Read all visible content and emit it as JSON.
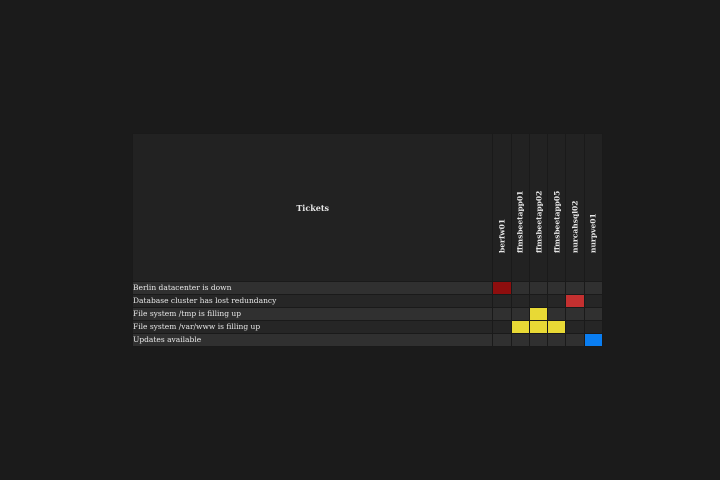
{
  "table": {
    "header_title": "Tickets",
    "hosts": [
      "berfw01",
      "ffmsbeetapp01",
      "ffmsbeetapp02",
      "ffmsbeetapp05",
      "nurcahsql02",
      "nurpve01"
    ],
    "tickets": [
      {
        "title": "Berlin datacenter is down",
        "cells": [
          "critical",
          "",
          "",
          "",
          "",
          ""
        ]
      },
      {
        "title": "Database cluster has lost redundancy",
        "cells": [
          "",
          "",
          "",
          "",
          "high",
          ""
        ]
      },
      {
        "title": "File system /tmp is filling up",
        "cells": [
          "",
          "",
          "warning",
          "",
          "",
          ""
        ]
      },
      {
        "title": "File system /var/www is filling up",
        "cells": [
          "",
          "warning",
          "warning",
          "warning",
          "",
          ""
        ]
      },
      {
        "title": "Updates available",
        "cells": [
          "",
          "",
          "",
          "",
          "",
          "info"
        ]
      }
    ]
  },
  "status_colors": {
    "critical": "#8e0e0e",
    "high": "#c43030",
    "warning": "#e8d935",
    "info": "#0a7ef2"
  }
}
